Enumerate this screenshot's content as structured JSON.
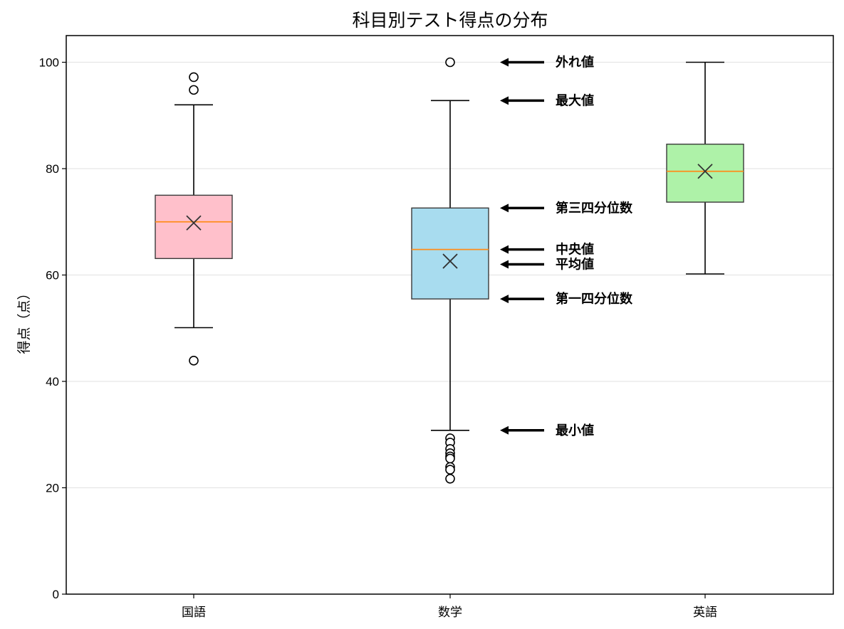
{
  "chart_data": {
    "type": "box",
    "title": "科目別テスト得点の分布",
    "xlabel": "",
    "ylabel": "得点（点）",
    "ylim": [
      0,
      105
    ],
    "yticks": [
      0,
      20,
      40,
      60,
      80,
      100
    ],
    "grid": {
      "y": true,
      "x": false,
      "color": "#e6e6e6"
    },
    "categories": [
      "国語",
      "数学",
      "英語"
    ],
    "series": [
      {
        "name": "国語",
        "color": "#ffc0cb",
        "whisker_low": 50.1,
        "q1": 63.1,
        "median": 70.0,
        "mean": 69.8,
        "q3": 75.0,
        "whisker_high": 92.0,
        "outliers": [
          97.2,
          94.8,
          43.9
        ]
      },
      {
        "name": "数学",
        "color": "#a8dcef",
        "whisker_low": 30.8,
        "q1": 55.5,
        "median": 64.8,
        "mean": 62.6,
        "q3": 72.6,
        "whisker_high": 92.8,
        "outliers": [
          100.0,
          29.3,
          28.5,
          27.3,
          26.5,
          25.9,
          25.5,
          23.9,
          23.4,
          21.7
        ]
      },
      {
        "name": "英語",
        "color": "#aef2a8",
        "whisker_low": 60.2,
        "q1": 73.7,
        "median": 79.5,
        "mean": 79.5,
        "q3": 84.6,
        "whisker_high": 100.0,
        "outliers": []
      }
    ],
    "median_color": "#ff8c1a",
    "mean_marker": "x",
    "annotations": [
      {
        "text": "外れ値",
        "y": 100.0,
        "target": "数学"
      },
      {
        "text": "最大値",
        "y": 92.8,
        "target": "数学"
      },
      {
        "text": "第三四分位数",
        "y": 72.6,
        "target": "数学"
      },
      {
        "text": "中央値",
        "y": 64.8,
        "target": "数学"
      },
      {
        "text": "平均値",
        "y": 62.0,
        "target": "数学"
      },
      {
        "text": "第一四分位数",
        "y": 55.5,
        "target": "数学"
      },
      {
        "text": "最小値",
        "y": 30.8,
        "target": "数学"
      }
    ]
  }
}
